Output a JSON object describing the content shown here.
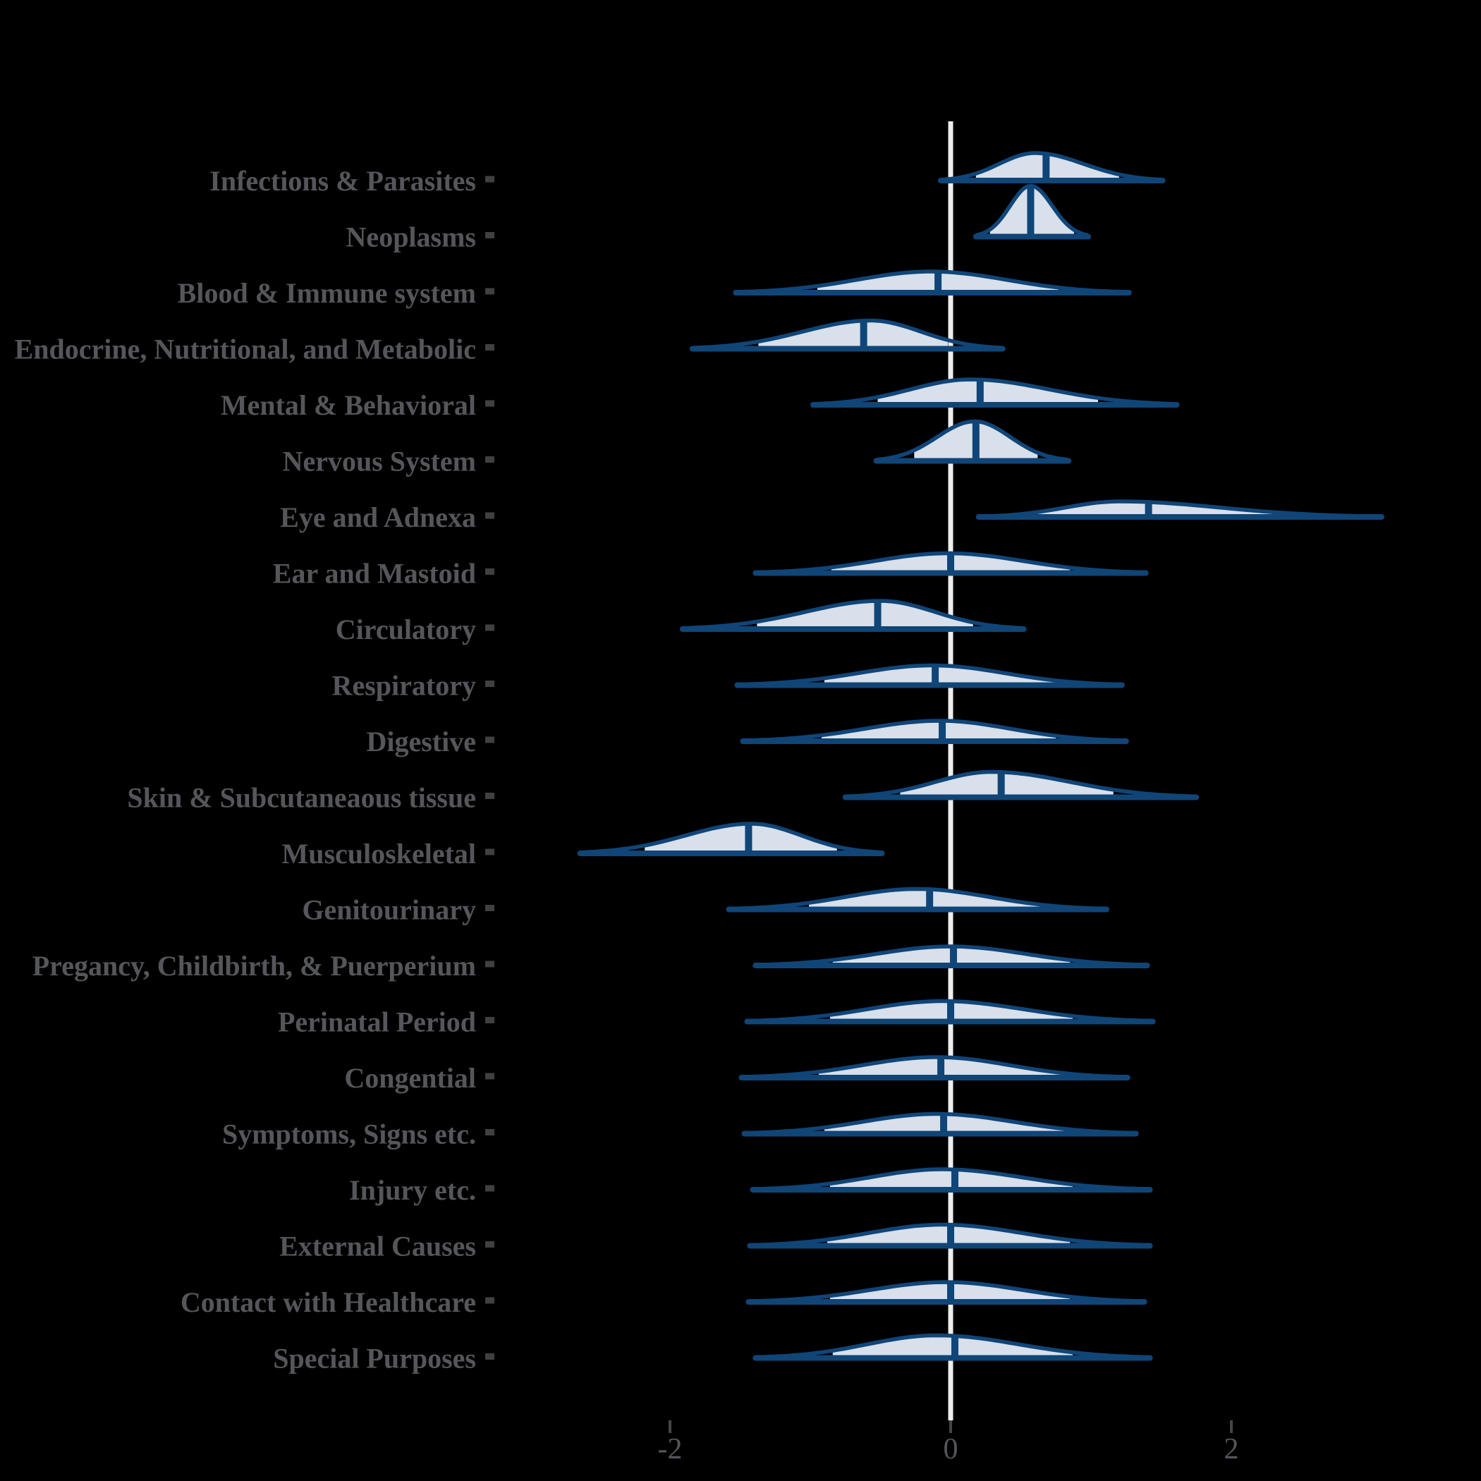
{
  "chart_data": {
    "type": "ridgeline-density",
    "title": "",
    "x_axis": {
      "ticks": [
        -2,
        0,
        2
      ],
      "tick_labels": [
        "-2",
        "0",
        "2"
      ],
      "zero_reference_line": true
    },
    "legend": null,
    "rows": [
      {
        "id": "infections-parasites",
        "label": "Infections & Parasites",
        "min": -0.06,
        "max": 1.5,
        "median": 0.68,
        "interval": [
          0.18,
          1.2
        ],
        "peak": 0.6,
        "peak_height": 39
      },
      {
        "id": "neoplasms",
        "label": "Neoplasms",
        "min": 0.19,
        "max": 0.97,
        "median": 0.57,
        "interval": [
          0.28,
          0.88
        ],
        "peak": 0.57,
        "peak_height": 72
      },
      {
        "id": "blood-immune",
        "label": "Blood & Immune system",
        "min": -1.52,
        "max": 1.26,
        "median": -0.09,
        "interval": [
          -0.95,
          0.77
        ],
        "peak": -0.14,
        "peak_height": 30
      },
      {
        "id": "endocrine-metabolic",
        "label": "Endocrine, Nutritional, and Metabolic",
        "min": -1.83,
        "max": 0.36,
        "median": -0.62,
        "interval": [
          -1.37,
          -0.02
        ],
        "peak": -0.57,
        "peak_height": 40
      },
      {
        "id": "mental-behavioral",
        "label": "Mental & Behavioral",
        "min": -0.97,
        "max": 1.6,
        "median": 0.21,
        "interval": [
          -0.52,
          1.05
        ],
        "peak": 0.14,
        "peak_height": 36
      },
      {
        "id": "nervous-system",
        "label": "Nervous System",
        "min": -0.52,
        "max": 0.83,
        "median": 0.18,
        "interval": [
          -0.26,
          0.62
        ],
        "peak": 0.17,
        "peak_height": 56
      },
      {
        "id": "eye-adnexa",
        "label": "Eye and Adnexa",
        "min": 0.21,
        "max": 3.06,
        "median": 1.41,
        "interval": [
          0.58,
          2.46
        ],
        "peak": 1.2,
        "peak_height": 22
      },
      {
        "id": "ear-mastoid",
        "label": "Ear and Mastoid",
        "min": -1.38,
        "max": 1.38,
        "median": 0.0,
        "interval": [
          -0.85,
          0.85
        ],
        "peak": -0.02,
        "peak_height": 28
      },
      {
        "id": "circulatory",
        "label": "Circulatory",
        "min": -1.9,
        "max": 0.51,
        "median": -0.52,
        "interval": [
          -1.38,
          0.16
        ],
        "peak": -0.5,
        "peak_height": 40
      },
      {
        "id": "respiratory",
        "label": "Respiratory",
        "min": -1.51,
        "max": 1.21,
        "median": -0.11,
        "interval": [
          -0.9,
          0.75
        ],
        "peak": -0.13,
        "peak_height": 28
      },
      {
        "id": "digestive",
        "label": "Digestive",
        "min": -1.47,
        "max": 1.24,
        "median": -0.06,
        "interval": [
          -0.92,
          0.75
        ],
        "peak": -0.08,
        "peak_height": 29
      },
      {
        "id": "skin-subcutaneous",
        "label": "Skin & Subcutaneaous tissue",
        "min": -0.74,
        "max": 1.74,
        "median": 0.36,
        "interval": [
          -0.36,
          1.16
        ],
        "peak": 0.29,
        "peak_height": 36
      },
      {
        "id": "musculoskeletal",
        "label": "Musculoskeletal",
        "min": -2.63,
        "max": -0.5,
        "median": -1.44,
        "interval": [
          -2.18,
          -0.81
        ],
        "peak": -1.42,
        "peak_height": 42
      },
      {
        "id": "genitourinary",
        "label": "Genitourinary",
        "min": -1.57,
        "max": 1.1,
        "median": -0.15,
        "interval": [
          -1.01,
          0.66
        ],
        "peak": -0.24,
        "peak_height": 29
      },
      {
        "id": "pregnancy-childbirth",
        "label": "Pregancy, Childbirth, & Puerperium",
        "min": -1.38,
        "max": 1.39,
        "median": 0.02,
        "interval": [
          -0.84,
          0.85
        ],
        "peak": 0.0,
        "peak_height": 27
      },
      {
        "id": "perinatal-period",
        "label": "Perinatal Period",
        "min": -1.44,
        "max": 1.43,
        "median": 0.0,
        "interval": [
          -0.86,
          0.87
        ],
        "peak": -0.06,
        "peak_height": 29
      },
      {
        "id": "congenital",
        "label": "Congential",
        "min": -1.48,
        "max": 1.25,
        "median": -0.07,
        "interval": [
          -0.94,
          0.8
        ],
        "peak": -0.1,
        "peak_height": 29
      },
      {
        "id": "symptoms-signs",
        "label": "Symptoms, Signs etc.",
        "min": -1.46,
        "max": 1.31,
        "median": -0.05,
        "interval": [
          -0.9,
          0.81
        ],
        "peak": -0.1,
        "peak_height": 28
      },
      {
        "id": "injury",
        "label": "Injury etc.",
        "min": -1.4,
        "max": 1.41,
        "median": 0.03,
        "interval": [
          -0.86,
          0.87
        ],
        "peak": -0.06,
        "peak_height": 29
      },
      {
        "id": "external-causes",
        "label": "External Causes",
        "min": -1.42,
        "max": 1.41,
        "median": 0.0,
        "interval": [
          -0.88,
          0.85
        ],
        "peak": -0.06,
        "peak_height": 30
      },
      {
        "id": "contact-healthcare",
        "label": "Contact with Healthcare",
        "min": -1.43,
        "max": 1.37,
        "median": 0.0,
        "interval": [
          -0.86,
          0.85
        ],
        "peak": -0.03,
        "peak_height": 28
      },
      {
        "id": "special-purposes",
        "label": "Special Purposes",
        "min": -1.38,
        "max": 1.41,
        "median": 0.03,
        "interval": [
          -0.84,
          0.87
        ],
        "peak": -0.1,
        "peak_height": 32
      }
    ]
  },
  "style": {
    "background": "#000000",
    "violin_outline": "#104578",
    "violin_fill": "#D7E0EB",
    "median_color": "#104578",
    "zero_line_color": "#EDEDEC",
    "label_color": "#55565A",
    "y_square_color": "#3F4042",
    "axis_tick_color": "#45464A",
    "tick_label_color": "#55565A"
  }
}
